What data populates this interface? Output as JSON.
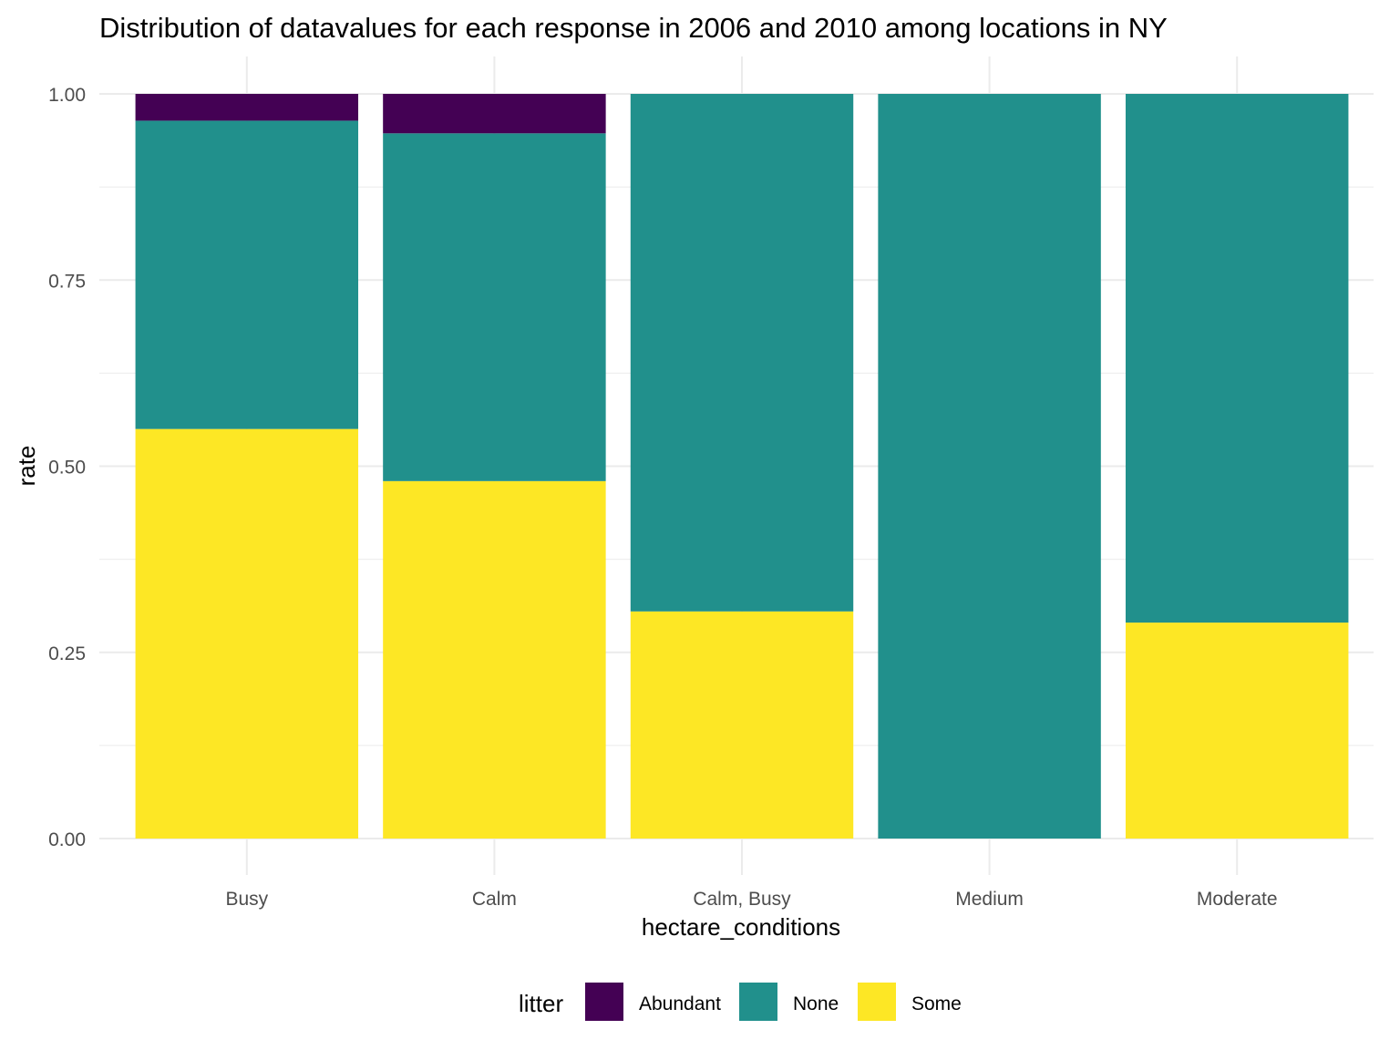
{
  "chart_data": {
    "type": "bar",
    "stacked": true,
    "title": "Distribution of datavalues for each response in 2006 and 2010 among locations in NY",
    "xlabel": "hectare_conditions",
    "ylabel": "rate",
    "ylim": [
      0,
      1
    ],
    "yticks": [
      "0.00",
      "0.25",
      "0.50",
      "0.75",
      "1.00"
    ],
    "categories": [
      "Busy",
      "Calm",
      "Calm, Busy",
      "Medium",
      "Moderate"
    ],
    "series": [
      {
        "name": "Some",
        "color": "#FDE725",
        "values": [
          0.55,
          0.48,
          0.305,
          0.0,
          0.29
        ]
      },
      {
        "name": "None",
        "color": "#21908C",
        "values": [
          0.414,
          0.467,
          0.695,
          1.0,
          0.71
        ]
      },
      {
        "name": "Abundant",
        "color": "#440154",
        "values": [
          0.036,
          0.053,
          0.0,
          0.0,
          0.0
        ]
      }
    ],
    "legend": {
      "title": "litter",
      "position": "bottom",
      "order": [
        "Abundant",
        "None",
        "Some"
      ]
    },
    "grid": true
  }
}
